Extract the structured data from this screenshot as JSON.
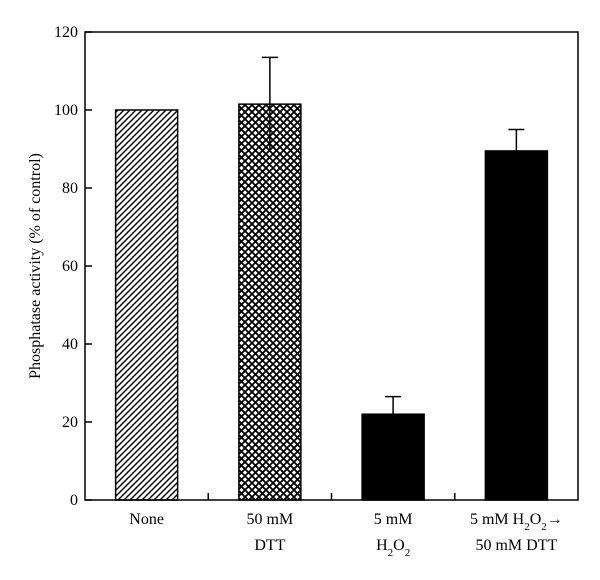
{
  "chart_data": {
    "type": "bar",
    "ylabel": "Phosphatase activity (% of control)",
    "ylim": [
      0,
      120
    ],
    "yticks": [
      0,
      20,
      40,
      60,
      80,
      100,
      120
    ],
    "grid": false,
    "categories": [
      {
        "lines": [
          [
            {
              "t": "None"
            }
          ]
        ]
      },
      {
        "lines": [
          [
            {
              "t": "50 mM"
            }
          ],
          [
            {
              "t": "DTT"
            }
          ]
        ]
      },
      {
        "lines": [
          [
            {
              "t": "5 mM"
            }
          ],
          [
            {
              "t": "H"
            },
            {
              "t": "2",
              "sub": true
            },
            {
              "t": "O"
            },
            {
              "t": "2",
              "sub": true
            }
          ]
        ]
      },
      {
        "lines": [
          [
            {
              "t": "5 mM H"
            },
            {
              "t": "2",
              "sub": true
            },
            {
              "t": "O"
            },
            {
              "t": "2",
              "sub": true
            },
            {
              "t": "→"
            }
          ],
          [
            {
              "t": "50 mM DTT"
            }
          ]
        ]
      }
    ],
    "values": [
      100,
      101.5,
      22,
      89.5
    ],
    "errors": [
      null,
      12,
      4.5,
      5.5
    ],
    "fills": [
      "diagonal-hatch",
      "crosshatch",
      "solid-black",
      "solid-black"
    ],
    "colors": {
      "ink": "#000000",
      "background": "#ffffff"
    }
  }
}
